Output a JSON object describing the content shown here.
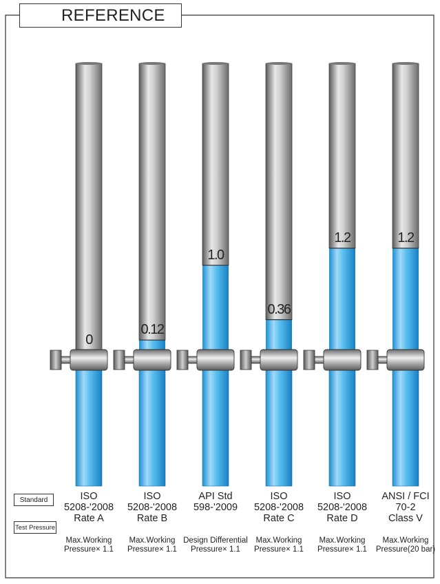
{
  "title": "REFERENCE",
  "row_labels": {
    "standard": "Standard",
    "test_pressure": "Test Pressure"
  },
  "colors": {
    "liquid": "#35a9e6",
    "tube_gray": "#9a9a9a",
    "frame": "#333333"
  },
  "columns": [
    {
      "value": "0",
      "level_fraction": 0.0,
      "standard": [
        "ISO",
        "5208-'2008",
        "Rate A"
      ],
      "test_pressure": [
        "Max.Working",
        "Pressure× 1.1"
      ]
    },
    {
      "value": "0.12",
      "level_fraction": 0.12,
      "standard": [
        "ISO",
        "5208-'2008",
        "Rate B"
      ],
      "test_pressure": [
        "Max.Working",
        "Pressure× 1.1"
      ]
    },
    {
      "value": "1.0",
      "level_fraction": 1.0,
      "standard": [
        "API Std",
        "598-'2009"
      ],
      "test_pressure": [
        "Design Differential",
        "Pressure× 1.1"
      ]
    },
    {
      "value": "0.36",
      "level_fraction": 0.36,
      "standard": [
        "ISO",
        "5208-'2008",
        "Rate C"
      ],
      "test_pressure": [
        "Max.Working",
        "Pressure× 1.1"
      ]
    },
    {
      "value": "1.2",
      "level_fraction": 1.2,
      "standard": [
        "ISO",
        "5208-'2008",
        "Rate D"
      ],
      "test_pressure": [
        "Max.Working",
        "Pressure× 1.1"
      ]
    },
    {
      "value": "1.2",
      "level_fraction": 1.2,
      "standard": [
        "ANSI / FCI",
        "70-2",
        "Class V"
      ],
      "test_pressure": [
        "Max.Working",
        "Pressure(20 bar)"
      ]
    }
  ]
}
